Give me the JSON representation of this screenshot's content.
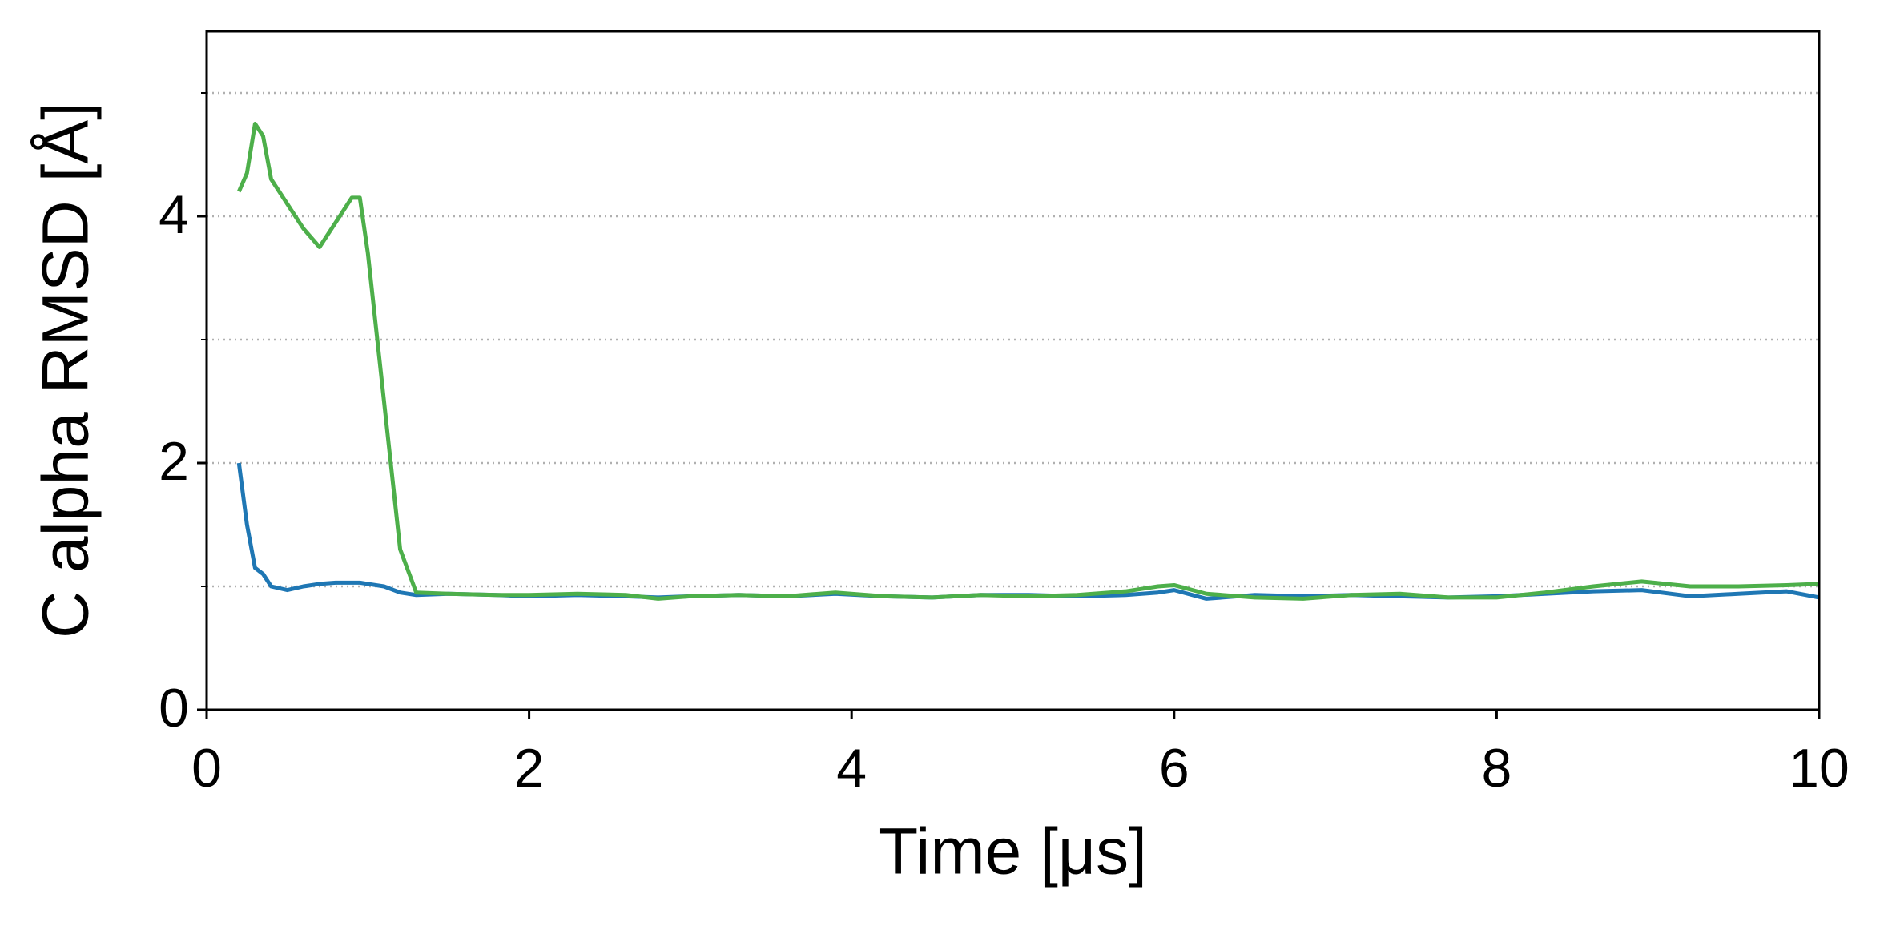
{
  "chart_data": {
    "type": "line",
    "xlabel": "Time [μs]",
    "ylabel": "C alpha RMSD [Å]",
    "x": [
      0.2,
      0.25,
      0.3,
      0.35,
      0.4,
      0.5,
      0.6,
      0.7,
      0.8,
      0.9,
      0.95,
      1.0,
      1.1,
      1.2,
      1.3,
      1.5,
      1.8,
      2.0,
      2.3,
      2.6,
      2.8,
      3.0,
      3.3,
      3.6,
      3.9,
      4.2,
      4.5,
      4.8,
      5.1,
      5.4,
      5.7,
      5.9,
      6.0,
      6.2,
      6.5,
      6.8,
      7.1,
      7.4,
      7.7,
      8.0,
      8.3,
      8.6,
      8.9,
      9.2,
      9.5,
      9.8,
      10.0
    ],
    "series": [
      {
        "color": "#1f77b4",
        "values": [
          2.0,
          1.5,
          1.15,
          1.1,
          1.0,
          0.97,
          1.0,
          1.02,
          1.03,
          1.03,
          1.03,
          1.02,
          1.0,
          0.95,
          0.93,
          0.94,
          0.93,
          0.92,
          0.93,
          0.92,
          0.91,
          0.92,
          0.93,
          0.92,
          0.94,
          0.92,
          0.91,
          0.93,
          0.93,
          0.92,
          0.93,
          0.95,
          0.97,
          0.9,
          0.93,
          0.92,
          0.93,
          0.92,
          0.91,
          0.92,
          0.94,
          0.96,
          0.97,
          0.92,
          0.94,
          0.96,
          0.91
        ]
      },
      {
        "color": "#4daf4a",
        "values": [
          4.2,
          4.35,
          4.75,
          4.65,
          4.3,
          4.1,
          3.9,
          3.75,
          3.95,
          4.15,
          4.15,
          3.7,
          2.5,
          1.3,
          0.95,
          0.94,
          0.93,
          0.93,
          0.94,
          0.93,
          0.9,
          0.92,
          0.93,
          0.92,
          0.95,
          0.92,
          0.91,
          0.93,
          0.92,
          0.93,
          0.96,
          1.0,
          1.01,
          0.94,
          0.91,
          0.9,
          0.93,
          0.94,
          0.91,
          0.91,
          0.95,
          1.0,
          1.04,
          1.0,
          1.0,
          1.01,
          1.02
        ]
      }
    ],
    "xlim": [
      0,
      10
    ],
    "xticks": [
      0,
      2,
      4,
      6,
      8,
      10
    ],
    "ylim": [
      0,
      5.5
    ],
    "yticks": [
      0,
      2,
      4
    ],
    "yminorticks": [
      1,
      3,
      5
    ],
    "grid": true
  }
}
